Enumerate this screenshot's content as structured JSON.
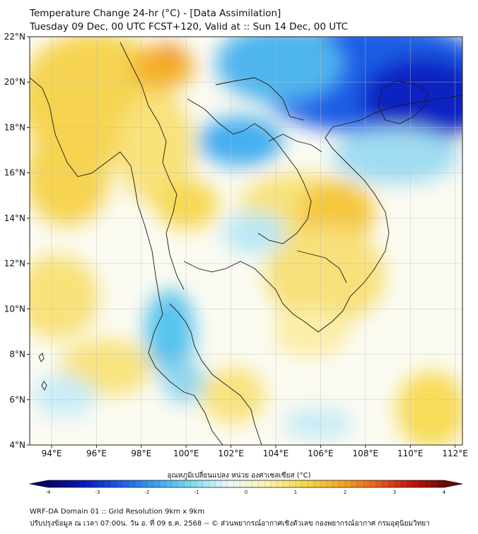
{
  "header": {
    "title_line1": "Temperature Change 24-hr (°C) - [Data Assimilation]",
    "title_line2": "Tuesday 09 Dec, 00 UTC FCST+120, Valid at :: Sun 14 Dec, 00 UTC"
  },
  "map": {
    "lat_labels": [
      "22°N",
      "20°N",
      "18°N",
      "16°N",
      "14°N",
      "12°N",
      "10°N",
      "8°N",
      "6°N",
      "4°N"
    ],
    "lon_labels": [
      "94°E",
      "96°E",
      "98°E",
      "100°E",
      "102°E",
      "104°E",
      "106°E",
      "108°E",
      "110°E",
      "112°E"
    ]
  },
  "colorbar": {
    "label": "อุณหภูมิเปลี่ยนแปลง หน่วย องศาเซลเซียส (°C)",
    "ticks": [
      "-4",
      "-3",
      "-2",
      "-1",
      "0",
      "1",
      "2",
      "3",
      "4"
    ],
    "colors": [
      "#08036b",
      "#0a1ab8",
      "#1e5be8",
      "#34a6f0",
      "#7fdcef",
      "#eef8fb",
      "#fbf3b4",
      "#f7dc52",
      "#f5b027",
      "#ea6a1d",
      "#c61b10",
      "#6e0707"
    ]
  },
  "footer": {
    "line1": "WRF-DA Domain 01 :: Grid Resolution 9km x 9km",
    "line2": "ปรับปรุงข้อมูล ณ เวลา 07:00น. วัน อ. ที่ 09 ธ.ค. 2568 -- © ส่วนพยากรณ์อากาศเชิงตัวเลข กองพยากรณ์อากาศ กรมอุตุนิยมวิทยา"
  }
}
